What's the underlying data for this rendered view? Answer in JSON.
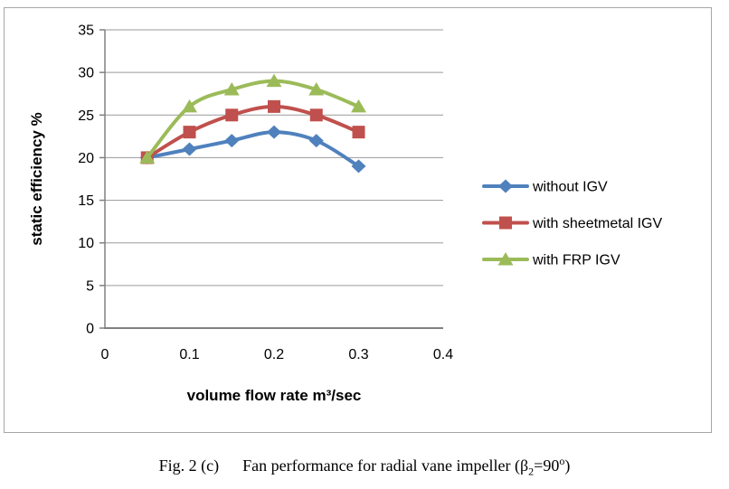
{
  "chart_data": {
    "type": "line",
    "x": [
      0.05,
      0.1,
      0.15,
      0.2,
      0.25,
      0.3
    ],
    "series": [
      {
        "name": "without IGV",
        "color": "#4F81BD",
        "marker": "diamond",
        "values": [
          20,
          21,
          22,
          23,
          22,
          19
        ]
      },
      {
        "name": "with sheetmetal IGV",
        "color": "#C0504D",
        "marker": "square",
        "values": [
          20,
          23,
          25,
          26,
          25,
          23
        ]
      },
      {
        "name": "with FRP IGV",
        "color": "#9BBB59",
        "marker": "triangle",
        "values": [
          20,
          26,
          28,
          29,
          28,
          26
        ]
      }
    ],
    "xlabel": "volume flow rate m³/sec",
    "ylabel": "static efficiency %",
    "xlim": [
      0,
      0.4
    ],
    "ylim": [
      0,
      35
    ],
    "xticks": [
      0,
      0.1,
      0.2,
      0.3,
      0.4
    ],
    "yticks": [
      0,
      5,
      10,
      15,
      20,
      25,
      30,
      35
    ],
    "grid": "horizontal",
    "legend_position": "right",
    "smooth": true
  },
  "caption": {
    "fig_label": "Fig. 2 (c)",
    "title_pre": "Fan performance for radial vane impeller (β",
    "beta_sub": "2",
    "title_mid": "=90",
    "deg_sup": "o",
    "title_post": ")"
  },
  "colors": {
    "grid": "#9a9a9a",
    "axis": "#808080",
    "frame": "#a6a6a6",
    "text": "#000000",
    "background": "#ffffff"
  }
}
